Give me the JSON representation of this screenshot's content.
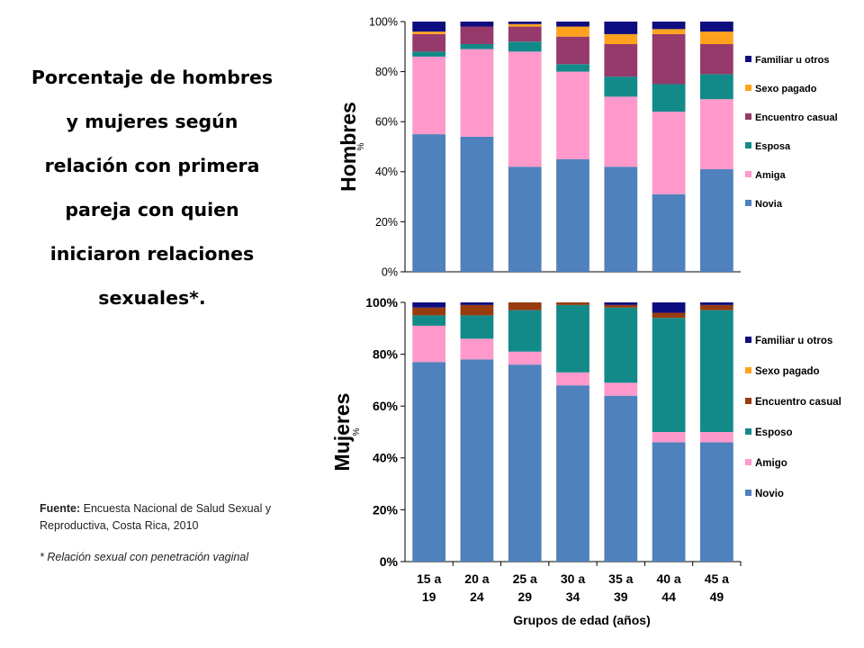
{
  "title_lines": [
    "Porcentaje de hombres",
    "y mujeres según",
    "relación con primera",
    "pareja con quien",
    "iniciaron relaciones",
    "sexuales*."
  ],
  "source": {
    "label": "Fuente:",
    "text": " Encuesta Nacional de Salud Sexual y Reproductiva, Costa Rica, 2010",
    "note": "* Relación sexual con penetración vaginal"
  },
  "chart_data": [
    {
      "type": "bar",
      "stacked": true,
      "panel_label": "Hombres",
      "ylabel": "%",
      "ylim": [
        0,
        100
      ],
      "yticks": [
        "0%",
        "20%",
        "40%",
        "60%",
        "80%",
        "100%"
      ],
      "categories": [
        "15 a 19",
        "20 a 24",
        "25 a 29",
        "30 a 34",
        "35 a 39",
        "40 a 44",
        "45 a 49"
      ],
      "series": [
        {
          "name": "Novia",
          "color": "#4f81bd",
          "values": [
            55,
            54,
            42,
            45,
            42,
            31,
            41
          ]
        },
        {
          "name": "Amiga",
          "color": "#ff99cc",
          "values": [
            31,
            35,
            46,
            35,
            28,
            33,
            28
          ]
        },
        {
          "name": "Esposa",
          "color": "#138a8a",
          "values": [
            2,
            2,
            4,
            3,
            8,
            11,
            10
          ]
        },
        {
          "name": "Encuentro casual",
          "color": "#953a6a",
          "values": [
            7,
            7,
            6,
            11,
            13,
            20,
            12
          ]
        },
        {
          "name": "Sexo pagado",
          "color": "#ffa21f",
          "values": [
            1,
            0,
            1,
            4,
            4,
            2,
            5
          ]
        },
        {
          "name": "Familiar u otros",
          "color": "#0d0d80",
          "values": [
            4,
            2,
            1,
            2,
            5,
            3,
            4
          ]
        }
      ]
    },
    {
      "type": "bar",
      "stacked": true,
      "panel_label": "Mujeres",
      "ylabel": "%",
      "xlabel": "Grupos de edad (años)",
      "ylim": [
        0,
        100
      ],
      "yticks": [
        "0%",
        "20%",
        "40%",
        "60%",
        "80%",
        "100%"
      ],
      "categories": [
        "15 a 19",
        "20 a 24",
        "25 a 29",
        "30 a 34",
        "35 a 39",
        "40 a 44",
        "45 a 49"
      ],
      "series": [
        {
          "name": "Novio",
          "color": "#4f81bd",
          "values": [
            77,
            78,
            76,
            68,
            64,
            46,
            46
          ]
        },
        {
          "name": "Amigo",
          "color": "#ff99cc",
          "values": [
            14,
            8,
            5,
            5,
            5,
            4,
            4
          ]
        },
        {
          "name": "Esposo",
          "color": "#138a8a",
          "values": [
            4,
            9,
            16,
            26,
            29,
            44,
            47
          ]
        },
        {
          "name": "Encuentro casual",
          "color": "#983b0f",
          "values": [
            3,
            4,
            3,
            1,
            1,
            2,
            2
          ]
        },
        {
          "name": "Sexo pagado",
          "color": "#ffa21f",
          "values": [
            0,
            0,
            0,
            0,
            0,
            0,
            0
          ]
        },
        {
          "name": "Familiar u otros",
          "color": "#0d0d80",
          "values": [
            2,
            1,
            0,
            0,
            1,
            4,
            1
          ]
        }
      ]
    }
  ]
}
